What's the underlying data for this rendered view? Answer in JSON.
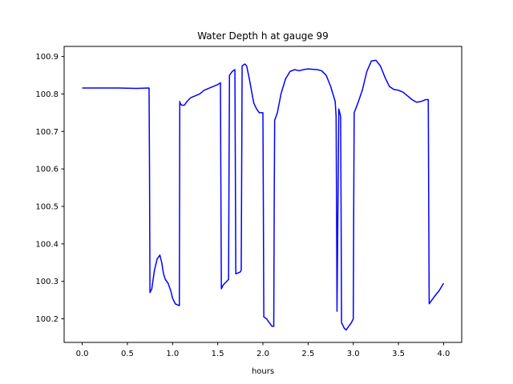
{
  "chart_data": {
    "type": "line",
    "title": "Water Depth h at gauge 99",
    "xlabel": "hours",
    "ylabel": "",
    "xlim": [
      -0.2,
      4.2
    ],
    "ylim": [
      100.137,
      100.927
    ],
    "xticks": [
      0.0,
      0.5,
      1.0,
      1.5,
      2.0,
      2.5,
      3.0,
      3.5,
      4.0
    ],
    "xtick_labels": [
      "0.0",
      "0.5",
      "1.0",
      "1.5",
      "2.0",
      "2.5",
      "3.0",
      "3.5",
      "4.0"
    ],
    "yticks": [
      100.2,
      100.3,
      100.4,
      100.5,
      100.6,
      100.7,
      100.8,
      100.9
    ],
    "ytick_labels": [
      "100.2",
      "100.3",
      "100.4",
      "100.5",
      "100.6",
      "100.7",
      "100.8",
      "100.9"
    ],
    "grid": false,
    "series": [
      {
        "color": "#0000ff",
        "x": [
          0.0,
          0.2,
          0.4,
          0.6,
          0.74,
          0.745,
          0.75,
          0.77,
          0.8,
          0.83,
          0.86,
          0.88,
          0.9,
          0.92,
          0.95,
          0.98,
          1.0,
          1.03,
          1.075,
          1.08,
          1.085,
          1.1,
          1.13,
          1.16,
          1.2,
          1.25,
          1.3,
          1.35,
          1.4,
          1.45,
          1.5,
          1.53,
          1.535,
          1.54,
          1.56,
          1.6,
          1.62,
          1.625,
          1.63,
          1.66,
          1.69,
          1.695,
          1.7,
          1.75,
          1.76,
          1.765,
          1.77,
          1.8,
          1.82,
          1.85,
          1.88,
          1.9,
          1.93,
          1.96,
          2.0,
          2.005,
          2.01,
          2.04,
          2.07,
          2.1,
          2.12,
          2.125,
          2.13,
          2.16,
          2.2,
          2.25,
          2.3,
          2.35,
          2.4,
          2.45,
          2.5,
          2.55,
          2.6,
          2.65,
          2.7,
          2.75,
          2.8,
          2.81,
          2.815,
          2.82,
          2.84,
          2.86,
          2.865,
          2.87,
          2.9,
          2.92,
          2.95,
          2.98,
          3.0,
          3.005,
          3.01,
          3.05,
          3.1,
          3.15,
          3.2,
          3.25,
          3.3,
          3.35,
          3.4,
          3.45,
          3.5,
          3.55,
          3.6,
          3.65,
          3.7,
          3.75,
          3.8,
          3.83,
          3.835,
          3.84,
          3.87,
          3.9,
          3.95,
          4.0
        ],
        "y": [
          100.816,
          100.816,
          100.816,
          100.815,
          100.816,
          100.6,
          100.27,
          100.28,
          100.33,
          100.36,
          100.37,
          100.35,
          100.32,
          100.305,
          100.295,
          100.275,
          100.255,
          100.24,
          100.235,
          100.78,
          100.775,
          100.77,
          100.77,
          100.78,
          100.79,
          100.795,
          100.8,
          100.81,
          100.815,
          100.82,
          100.825,
          100.83,
          100.55,
          100.28,
          100.29,
          100.3,
          100.305,
          100.6,
          100.85,
          100.86,
          100.865,
          100.6,
          100.32,
          100.325,
          100.33,
          100.6,
          100.875,
          100.88,
          100.875,
          100.84,
          100.8,
          100.775,
          100.76,
          100.75,
          100.75,
          100.5,
          100.205,
          100.2,
          100.19,
          100.18,
          100.18,
          100.5,
          100.73,
          100.75,
          100.8,
          100.84,
          100.86,
          100.865,
          100.862,
          100.865,
          100.867,
          100.866,
          100.865,
          100.862,
          100.85,
          100.82,
          100.78,
          100.74,
          100.5,
          100.22,
          100.76,
          100.74,
          100.5,
          100.19,
          100.175,
          100.17,
          100.18,
          100.19,
          100.2,
          100.5,
          100.75,
          100.775,
          100.81,
          100.86,
          100.888,
          100.89,
          100.875,
          100.845,
          100.82,
          100.812,
          100.81,
          100.805,
          100.795,
          100.785,
          100.778,
          100.78,
          100.785,
          100.785,
          100.5,
          100.24,
          100.25,
          100.26,
          100.275,
          100.295
        ]
      }
    ]
  }
}
